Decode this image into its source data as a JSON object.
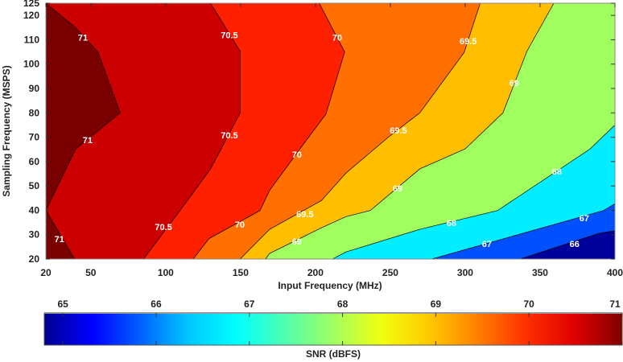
{
  "chart_data": {
    "type": "contour",
    "xlabel": "Input Frequency (MHz)",
    "ylabel": "Sampling Frequency (MSPS)",
    "xlim": [
      20,
      400
    ],
    "ylim": [
      20,
      125
    ],
    "xticks": [
      20,
      50,
      100,
      150,
      200,
      250,
      300,
      350,
      400
    ],
    "yticks": [
      20,
      30,
      40,
      50,
      60,
      70,
      80,
      90,
      100,
      110,
      120,
      125
    ],
    "base_color": "#00009c",
    "levels": [
      {
        "level": 66,
        "color": "#0050ff",
        "line": [
          [
            400,
            31.6
          ],
          [
            389.7,
            30.6
          ],
          [
            336.8,
            20
          ]
        ]
      },
      {
        "level": 67,
        "color": "#00eeff",
        "line": [
          [
            400,
            42.7
          ],
          [
            392.4,
            39.9
          ],
          [
            277.7,
            20
          ]
        ]
      },
      {
        "level": 68,
        "color": "#a0ff5f",
        "line": [
          [
            400,
            75
          ],
          [
            383.4,
            65.2
          ],
          [
            321.6,
            39.9
          ],
          [
            269.7,
            32.2
          ],
          [
            220.4,
            22.9
          ],
          [
            211.4,
            20
          ]
        ]
      },
      {
        "level": 69,
        "color": "#ffbf00",
        "line": [
          [
            359.2,
            125
          ],
          [
            341.3,
            105.4
          ],
          [
            325.2,
            80
          ],
          [
            300,
            65.2
          ],
          [
            269.7,
            57
          ],
          [
            236.6,
            39.9
          ],
          [
            220.4,
            37.4
          ],
          [
            204,
            32.8
          ],
          [
            169.4,
            22.3
          ],
          [
            166.7,
            20
          ]
        ]
      },
      {
        "level": 69.5,
        "color": "#ff7000",
        "line": [
          [
            310,
            125
          ],
          [
            299.3,
            104.8
          ],
          [
            269.7,
            80
          ],
          [
            249,
            70.2
          ],
          [
            220.4,
            55.3
          ],
          [
            204,
            44
          ],
          [
            169.4,
            32.2
          ],
          [
            149.7,
            20
          ]
        ]
      },
      {
        "level": 70,
        "color": "#ff2000",
        "line": [
          [
            202.5,
            125
          ],
          [
            219.5,
            105
          ],
          [
            207,
            79.5
          ],
          [
            193.6,
            68.5
          ],
          [
            169.4,
            48.2
          ],
          [
            163,
            39.9
          ],
          [
            129,
            28.4
          ],
          [
            118.3,
            20
          ]
        ]
      },
      {
        "level": 70.5,
        "color": "#cc0000",
        "line": [
          [
            130,
            125
          ],
          [
            149.7,
            105.3
          ],
          [
            149.7,
            80
          ],
          [
            138,
            66.3
          ],
          [
            130,
            57
          ],
          [
            110.3,
            40.5
          ],
          [
            85.2,
            20
          ]
        ]
      },
      {
        "level": 71,
        "color": "#7a0000",
        "line": [
          [
            20,
            125
          ],
          [
            39.2,
            115.3
          ],
          [
            54.8,
            105
          ],
          [
            69.6,
            80
          ],
          [
            39.9,
            65.2
          ],
          [
            20,
            40
          ],
          [
            39.2,
            20
          ]
        ]
      }
    ],
    "contour_labels": [
      {
        "text": "71",
        "x": 44.7,
        "y": 111
      },
      {
        "text": "71",
        "x": 47.9,
        "y": 68.9
      },
      {
        "text": "71",
        "x": 29,
        "y": 28.3
      },
      {
        "text": "70.5",
        "x": 142.5,
        "y": 112
      },
      {
        "text": "70.5",
        "x": 142.5,
        "y": 70.8
      },
      {
        "text": "70.5",
        "x": 98.5,
        "y": 33.2
      },
      {
        "text": "70",
        "x": 214.5,
        "y": 111
      },
      {
        "text": "70",
        "x": 187.6,
        "y": 62.9
      },
      {
        "text": "70",
        "x": 149.5,
        "y": 34.2
      },
      {
        "text": "69.5",
        "x": 302,
        "y": 109.5
      },
      {
        "text": "69.5",
        "x": 255.4,
        "y": 72.8
      },
      {
        "text": "69.5",
        "x": 193,
        "y": 38.5
      },
      {
        "text": "69",
        "x": 332.7,
        "y": 92.3
      },
      {
        "text": "69",
        "x": 254.8,
        "y": 49
      },
      {
        "text": "69",
        "x": 187.6,
        "y": 27.3
      },
      {
        "text": "68",
        "x": 361.2,
        "y": 56
      },
      {
        "text": "68",
        "x": 290.8,
        "y": 34.9
      },
      {
        "text": "67",
        "x": 379.5,
        "y": 36.8
      },
      {
        "text": "67",
        "x": 314.5,
        "y": 26.3
      },
      {
        "text": "66",
        "x": 373,
        "y": 26.3
      }
    ],
    "colorbar": {
      "label": "SNR (dBFS)",
      "range": [
        64.8,
        71
      ],
      "ticks": [
        65,
        66,
        67,
        68,
        69,
        70,
        71
      ],
      "colors": [
        "#00008f",
        "#0000ff",
        "#0060ff",
        "#00c8ff",
        "#00ffff",
        "#50ffb0",
        "#a0ff60",
        "#f0ff10",
        "#ffc800",
        "#ff8000",
        "#ff3000",
        "#e00000",
        "#800000"
      ]
    }
  }
}
